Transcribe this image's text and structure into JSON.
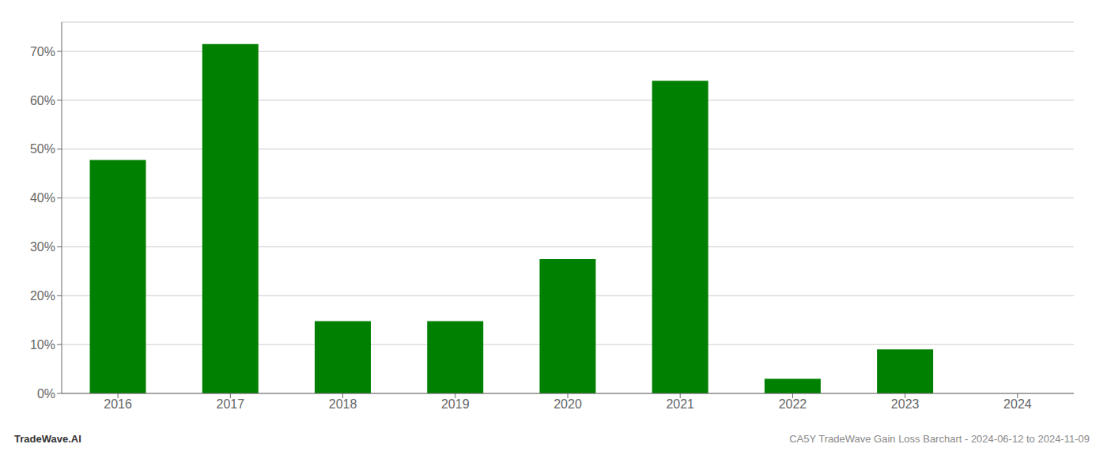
{
  "chart_data": {
    "type": "bar",
    "categories": [
      "2016",
      "2017",
      "2018",
      "2019",
      "2020",
      "2021",
      "2022",
      "2023",
      "2024"
    ],
    "values": [
      47.8,
      71.5,
      14.8,
      14.8,
      27.5,
      64.0,
      3.0,
      9.0,
      0.0
    ],
    "color": "#008000",
    "ylim": [
      0,
      76
    ],
    "yticks": [
      {
        "value": 0,
        "label": "0%"
      },
      {
        "value": 10,
        "label": "10%"
      },
      {
        "value": 20,
        "label": "20%"
      },
      {
        "value": 30,
        "label": "30%"
      },
      {
        "value": 40,
        "label": "40%"
      },
      {
        "value": 50,
        "label": "50%"
      },
      {
        "value": 60,
        "label": "60%"
      },
      {
        "value": 70,
        "label": "70%"
      }
    ],
    "grid": true,
    "annotations": [
      "TradeWave.AI",
      "CA5Y TradeWave Gain Loss Barchart - 2024-06-12 to 2024-11-09"
    ]
  }
}
